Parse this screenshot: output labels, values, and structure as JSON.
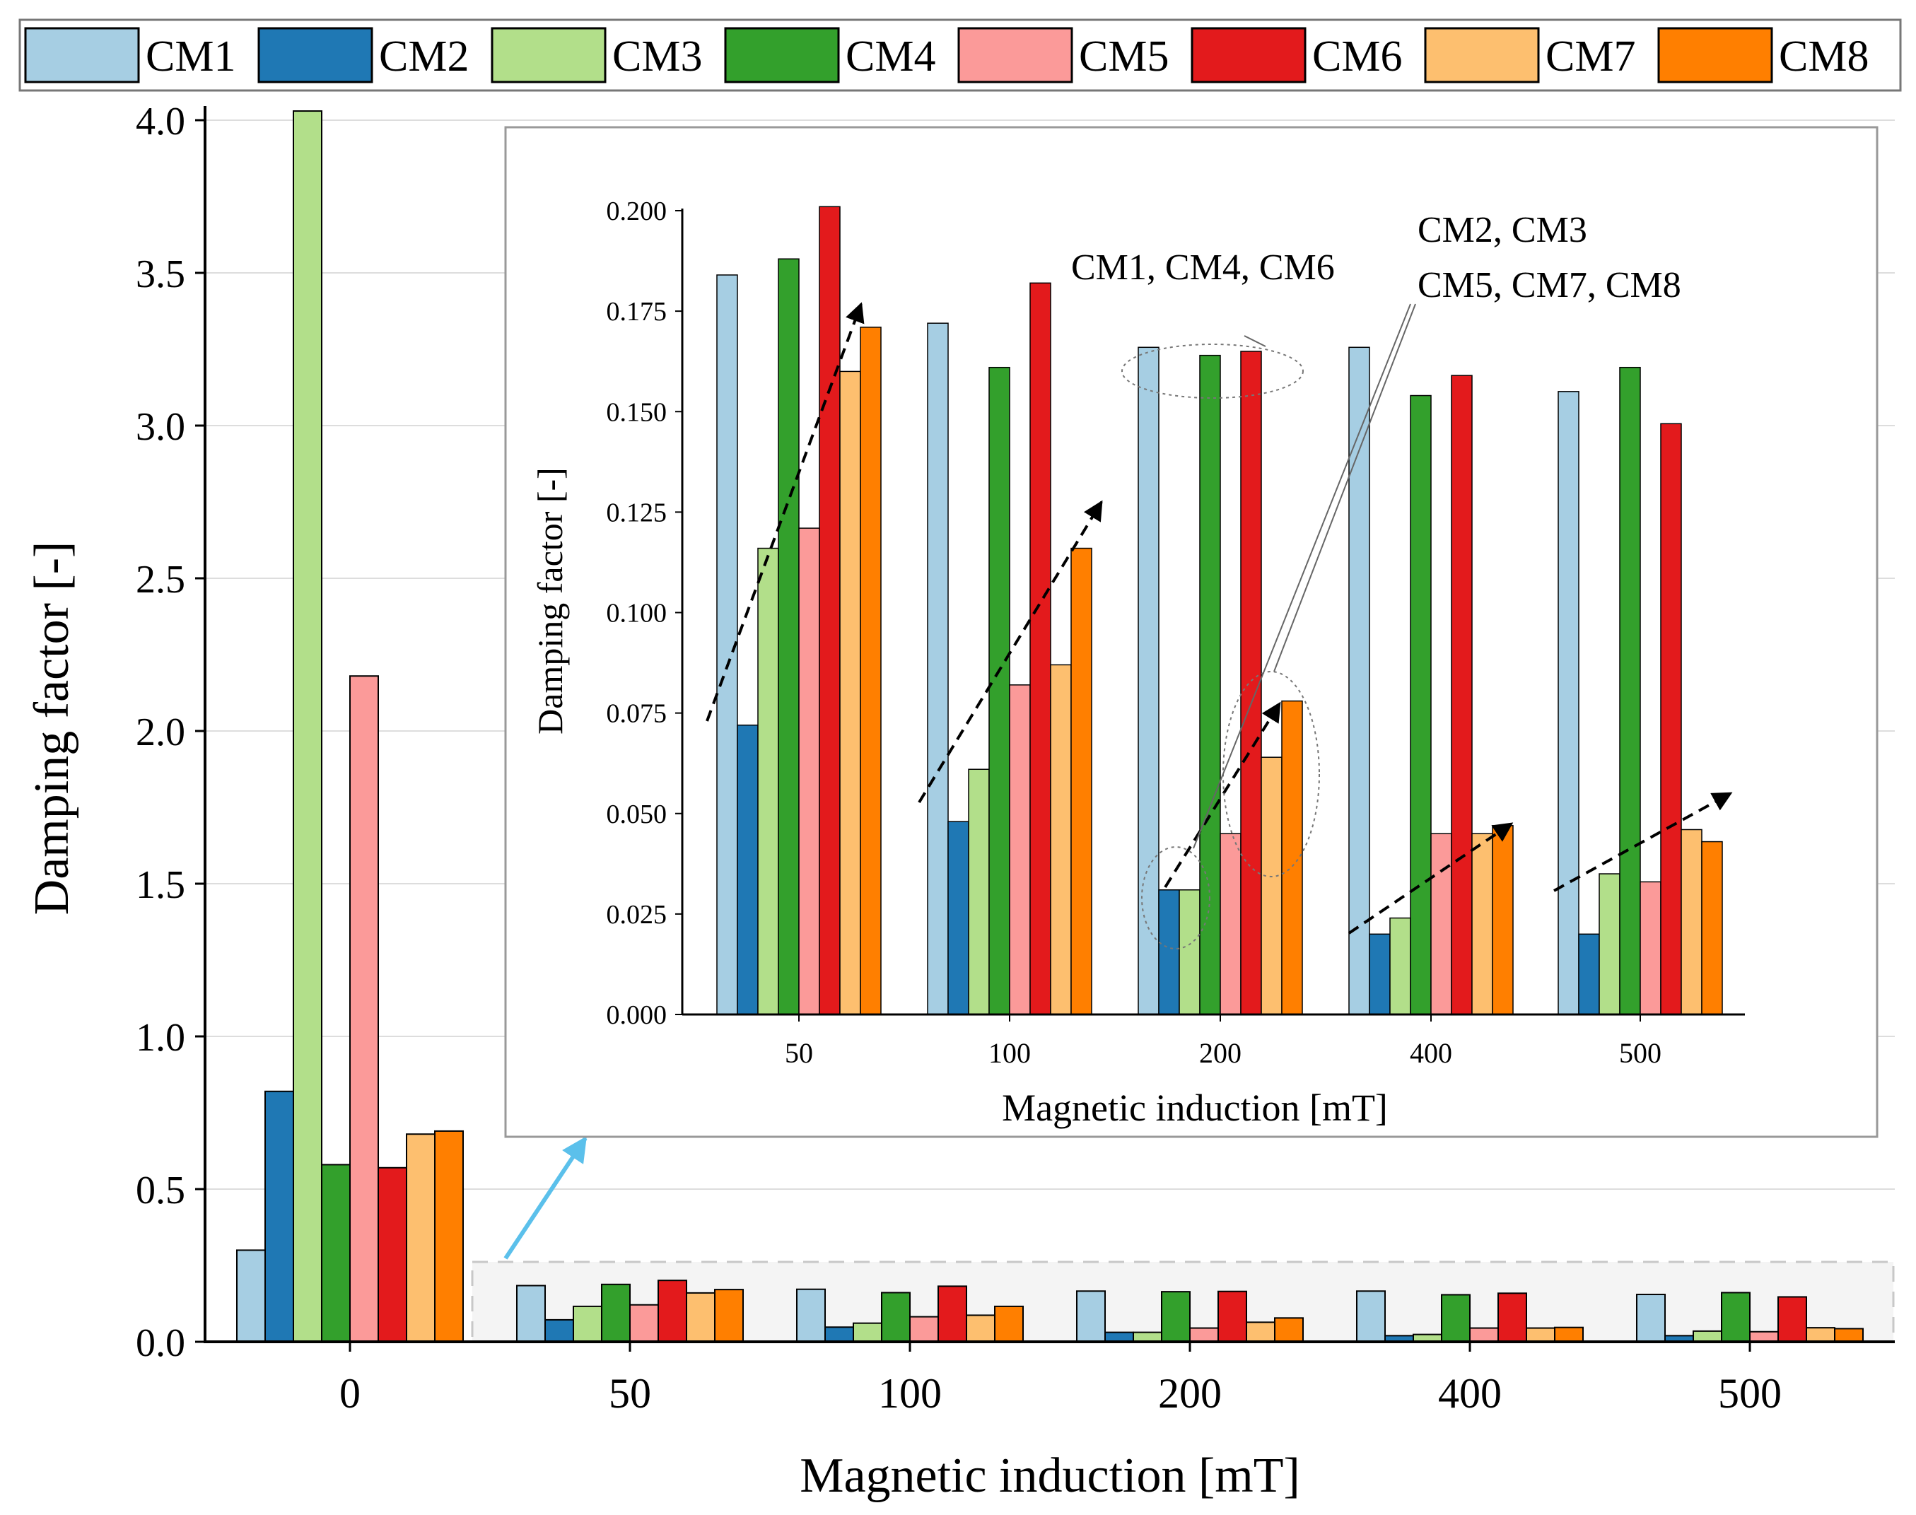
{
  "colors": {
    "CM1": "#a6cee3",
    "CM2": "#1f78b4",
    "CM3": "#b2df8a",
    "CM4": "#33a02c",
    "CM5": "#fb9a99",
    "CM6": "#e31a1c",
    "CM7": "#fdbf6f",
    "CM8": "#ff7f00",
    "axis": "#000000",
    "grid": "#dddddd",
    "zoom_arrow": "#5bc0eb"
  },
  "legend": [
    "CM1",
    "CM2",
    "CM3",
    "CM4",
    "CM5",
    "CM6",
    "CM7",
    "CM8"
  ],
  "chart_data": [
    {
      "id": "main",
      "type": "bar",
      "title": "",
      "xlabel": "Magnetic induction [mT]",
      "ylabel": "Damping factor [-]",
      "categories": [
        "0",
        "50",
        "100",
        "200",
        "400",
        "500"
      ],
      "ylim": [
        0,
        4.2
      ],
      "yticks": [
        "0.0",
        "0.5",
        "1.0",
        "1.5",
        "2.0",
        "2.5",
        "3.0",
        "3.5",
        "4.0"
      ],
      "grid": true,
      "series": [
        {
          "name": "CM1",
          "values": [
            0.3,
            0.184,
            0.172,
            0.166,
            0.166,
            0.155
          ]
        },
        {
          "name": "CM2",
          "values": [
            0.82,
            0.072,
            0.048,
            0.031,
            0.02,
            0.02
          ]
        },
        {
          "name": "CM3",
          "values": [
            4.03,
            0.116,
            0.061,
            0.031,
            0.024,
            0.035
          ]
        },
        {
          "name": "CM4",
          "values": [
            0.58,
            0.188,
            0.161,
            0.164,
            0.154,
            0.161
          ]
        },
        {
          "name": "CM5",
          "values": [
            2.18,
            0.121,
            0.082,
            0.045,
            0.045,
            0.033
          ]
        },
        {
          "name": "CM6",
          "values": [
            0.57,
            0.201,
            0.182,
            0.165,
            0.159,
            0.147
          ]
        },
        {
          "name": "CM7",
          "values": [
            0.68,
            0.16,
            0.087,
            0.064,
            0.045,
            0.046
          ]
        },
        {
          "name": "CM8",
          "values": [
            0.69,
            0.171,
            0.116,
            0.078,
            0.047,
            0.043
          ]
        }
      ]
    },
    {
      "id": "inset",
      "type": "bar",
      "title": "",
      "xlabel": "Magnetic induction [mT]",
      "ylabel": "Damping factor [-]",
      "categories": [
        "50",
        "100",
        "200",
        "400",
        "500"
      ],
      "ylim": [
        0,
        0.2
      ],
      "yticks": [
        "0.000",
        "0.025",
        "0.050",
        "0.075",
        "0.100",
        "0.125",
        "0.150",
        "0.175",
        "0.200"
      ],
      "grid": false,
      "series": [
        {
          "name": "CM1",
          "values": [
            0.184,
            0.172,
            0.166,
            0.166,
            0.155
          ]
        },
        {
          "name": "CM2",
          "values": [
            0.072,
            0.048,
            0.031,
            0.02,
            0.02
          ]
        },
        {
          "name": "CM3",
          "values": [
            0.116,
            0.061,
            0.031,
            0.024,
            0.035
          ]
        },
        {
          "name": "CM4",
          "values": [
            0.188,
            0.161,
            0.164,
            0.154,
            0.161
          ]
        },
        {
          "name": "CM5",
          "values": [
            0.121,
            0.082,
            0.045,
            0.045,
            0.033
          ]
        },
        {
          "name": "CM6",
          "values": [
            0.201,
            0.182,
            0.165,
            0.159,
            0.147
          ]
        },
        {
          "name": "CM7",
          "values": [
            0.16,
            0.087,
            0.064,
            0.045,
            0.046
          ]
        },
        {
          "name": "CM8",
          "values": [
            0.171,
            0.116,
            0.078,
            0.047,
            0.043
          ]
        }
      ],
      "annotations": {
        "group1": "CM1, CM4, CM6",
        "group2_line1": "CM2, CM3",
        "group2_line2": "CM5, CM7, CM8"
      }
    }
  ]
}
